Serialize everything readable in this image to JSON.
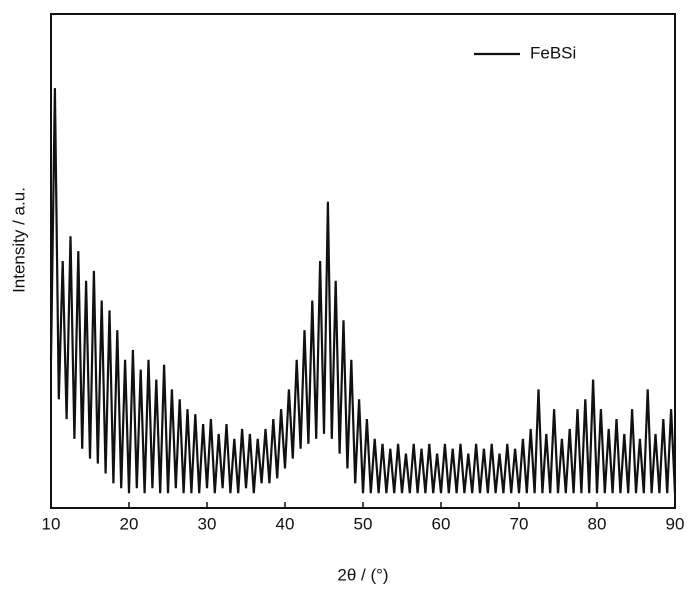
{
  "chart_data": {
    "type": "line",
    "xlabel": "2θ / (°)",
    "ylabel": "Intensity / a.u.",
    "x": [
      10,
      10.5,
      11,
      11.5,
      12,
      12.5,
      13,
      13.5,
      14,
      14.5,
      15,
      15.5,
      16,
      16.5,
      17,
      17.5,
      18,
      18.5,
      19,
      19.5,
      20,
      20.5,
      21,
      21.5,
      22,
      22.5,
      23,
      23.5,
      24,
      24.5,
      25,
      25.5,
      26,
      26.5,
      27,
      27.5,
      28,
      28.5,
      29,
      29.5,
      30,
      30.5,
      31,
      31.5,
      32,
      32.5,
      33,
      33.5,
      34,
      34.5,
      35,
      35.5,
      36,
      36.5,
      37,
      37.5,
      38,
      38.5,
      39,
      39.5,
      40,
      40.5,
      41,
      41.5,
      42,
      42.5,
      43,
      43.5,
      44,
      44.5,
      45,
      45.5,
      46,
      46.5,
      47,
      47.5,
      48,
      48.5,
      49,
      49.5,
      50,
      50.5,
      51,
      51.5,
      52,
      52.5,
      53,
      53.5,
      54,
      54.5,
      55,
      55.5,
      56,
      56.5,
      57,
      57.5,
      58,
      58.5,
      59,
      59.5,
      60,
      60.5,
      61,
      61.5,
      62,
      62.5,
      63,
      63.5,
      64,
      64.5,
      65,
      65.5,
      66,
      66.5,
      67,
      67.5,
      68,
      68.5,
      69,
      69.5,
      70,
      70.5,
      71,
      71.5,
      72,
      72.5,
      73,
      73.5,
      74,
      74.5,
      75,
      75.5,
      76,
      76.5,
      77,
      77.5,
      78,
      78.5,
      79,
      79.5,
      80,
      80.5,
      81,
      81.5,
      82,
      82.5,
      83,
      83.5,
      84,
      84.5,
      85,
      85.5,
      86,
      86.5,
      87,
      87.5,
      88,
      88.5,
      89,
      89.5,
      90
    ],
    "series": [
      {
        "name": "FeBSi",
        "color": "#111111",
        "values": [
          30,
          85,
          22,
          50,
          18,
          55,
          14,
          52,
          12,
          46,
          10,
          48,
          9,
          42,
          7,
          40,
          5,
          36,
          4,
          30,
          3,
          32,
          4,
          28,
          3,
          30,
          4,
          26,
          3,
          29,
          3,
          24,
          4,
          22,
          3,
          20,
          3,
          19,
          3,
          17,
          4,
          18,
          3,
          15,
          4,
          17,
          3,
          14,
          3,
          16,
          4,
          15,
          3,
          14,
          5,
          16,
          5,
          18,
          6,
          20,
          8,
          24,
          10,
          30,
          12,
          36,
          13,
          42,
          14,
          50,
          15,
          62,
          14,
          46,
          11,
          38,
          8,
          30,
          5,
          22,
          3,
          18,
          3,
          14,
          3,
          13,
          3,
          12,
          3,
          13,
          3,
          11,
          3,
          13,
          3,
          12,
          3,
          13,
          3,
          11,
          3,
          13,
          3,
          12,
          3,
          13,
          3,
          11,
          3,
          13,
          3,
          12,
          3,
          13,
          3,
          11,
          3,
          13,
          3,
          12,
          3,
          14,
          3,
          16,
          3,
          24,
          3,
          15,
          3,
          20,
          3,
          14,
          3,
          16,
          3,
          20,
          3,
          22,
          3,
          26,
          3,
          20,
          3,
          16,
          3,
          18,
          3,
          15,
          3,
          20,
          3,
          14,
          3,
          24,
          3,
          15,
          3,
          18,
          3,
          20,
          3
        ]
      }
    ],
    "xlim": [
      10,
      90
    ],
    "xticks": [
      10,
      20,
      30,
      40,
      50,
      60,
      70,
      80,
      90
    ],
    "ylim": [
      0,
      100
    ],
    "grid": false,
    "legend": "upper right"
  }
}
